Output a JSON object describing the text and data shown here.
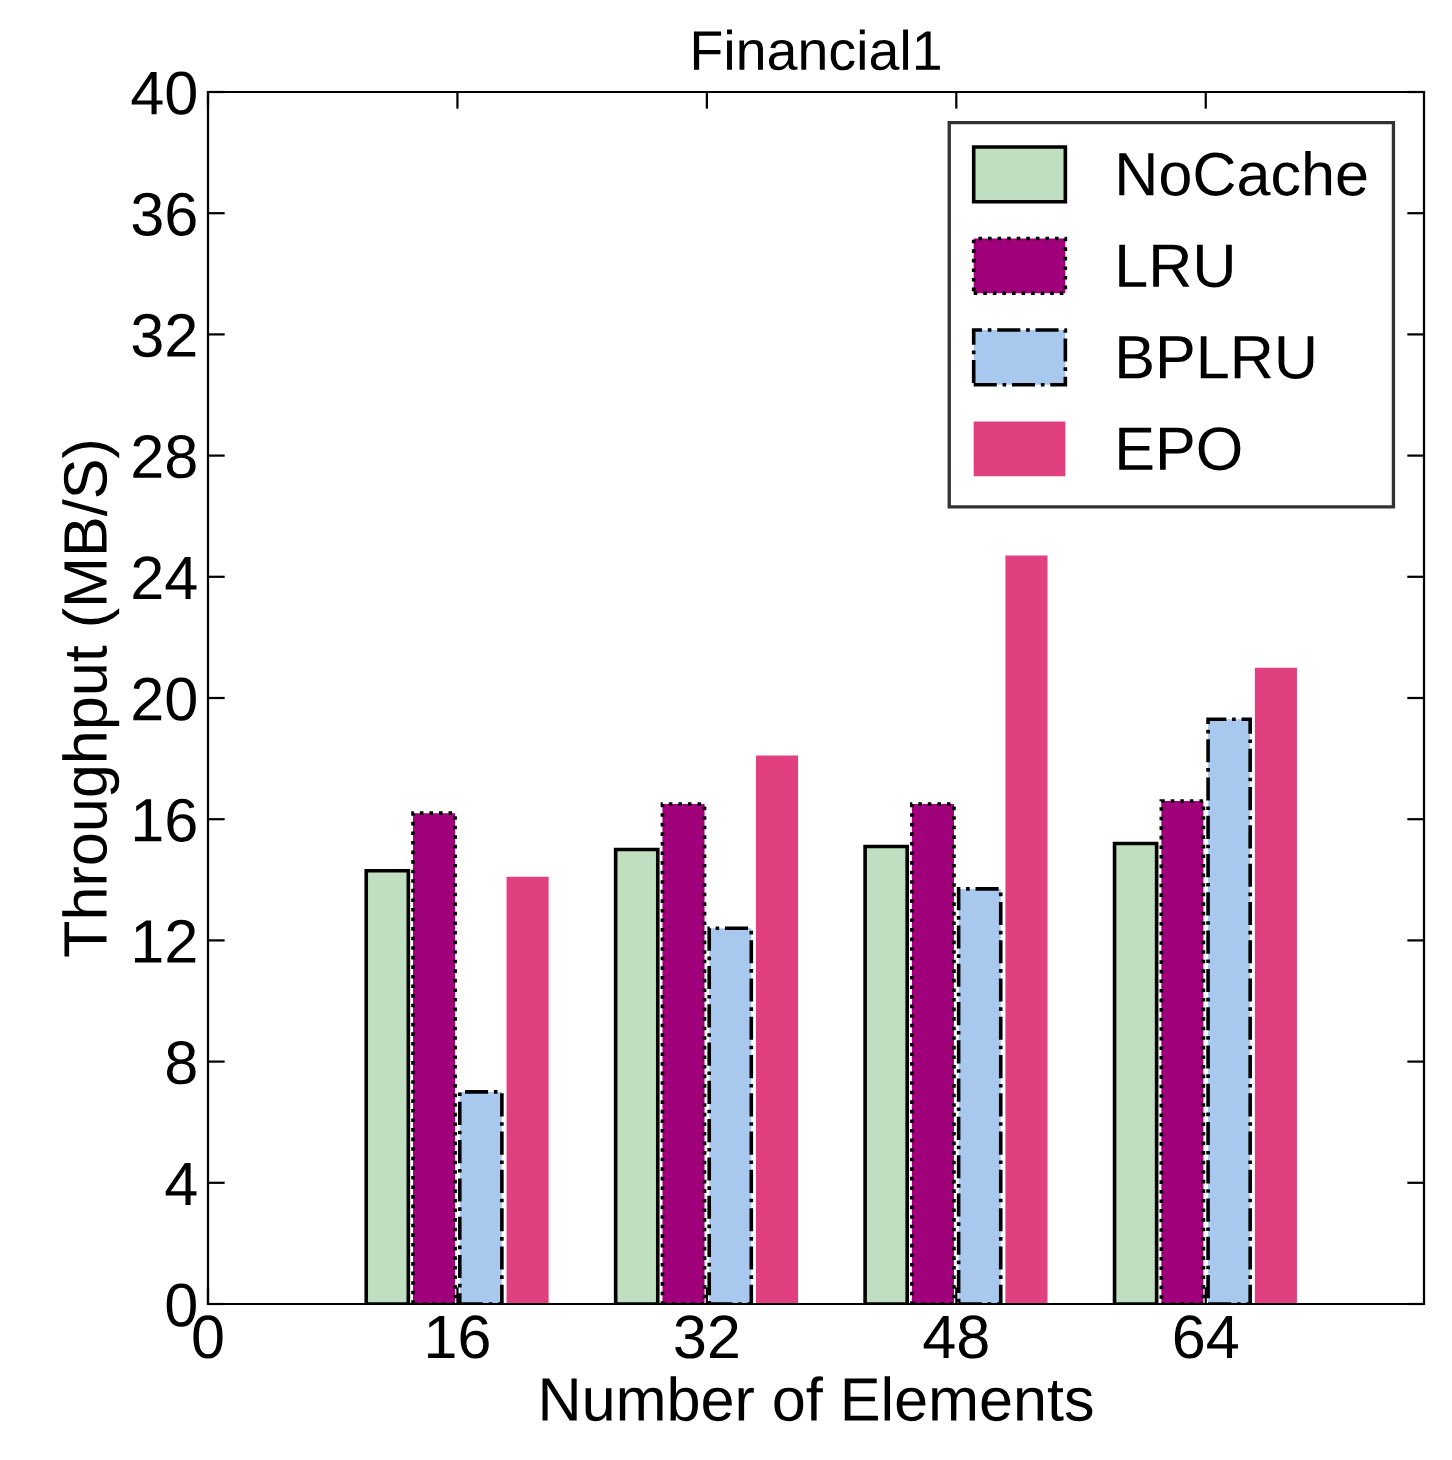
{
  "chart_data": {
    "type": "bar",
    "title": "Financial1",
    "xlabel": "Number of Elements",
    "ylabel": "Throughput (MB/S)",
    "x": [
      16,
      32,
      48,
      64
    ],
    "series": [
      {
        "name": "NoCache",
        "color": "#c0dfc0",
        "line_style": "solid",
        "values": [
          14.3,
          15.0,
          15.1,
          15.2
        ]
      },
      {
        "name": "LRU",
        "color": "#a0007a",
        "line_style": "dotted",
        "values": [
          16.2,
          16.5,
          16.5,
          16.6
        ]
      },
      {
        "name": "BPLRU",
        "color": "#a8c8ee",
        "line_style": "dashed",
        "values": [
          7.0,
          12.4,
          13.7,
          19.3
        ]
      },
      {
        "name": "EPO",
        "color": "#e04080",
        "line_style": "none",
        "values": [
          14.1,
          18.1,
          24.7,
          21.0
        ]
      }
    ],
    "xlim": [
      0,
      78
    ],
    "xticks": [
      0,
      16,
      32,
      48,
      64
    ],
    "ylim": [
      0,
      40
    ],
    "yticks": [
      0,
      4,
      8,
      12,
      16,
      20,
      24,
      28,
      32,
      36,
      40
    ],
    "legend": "top right",
    "grid": false
  }
}
